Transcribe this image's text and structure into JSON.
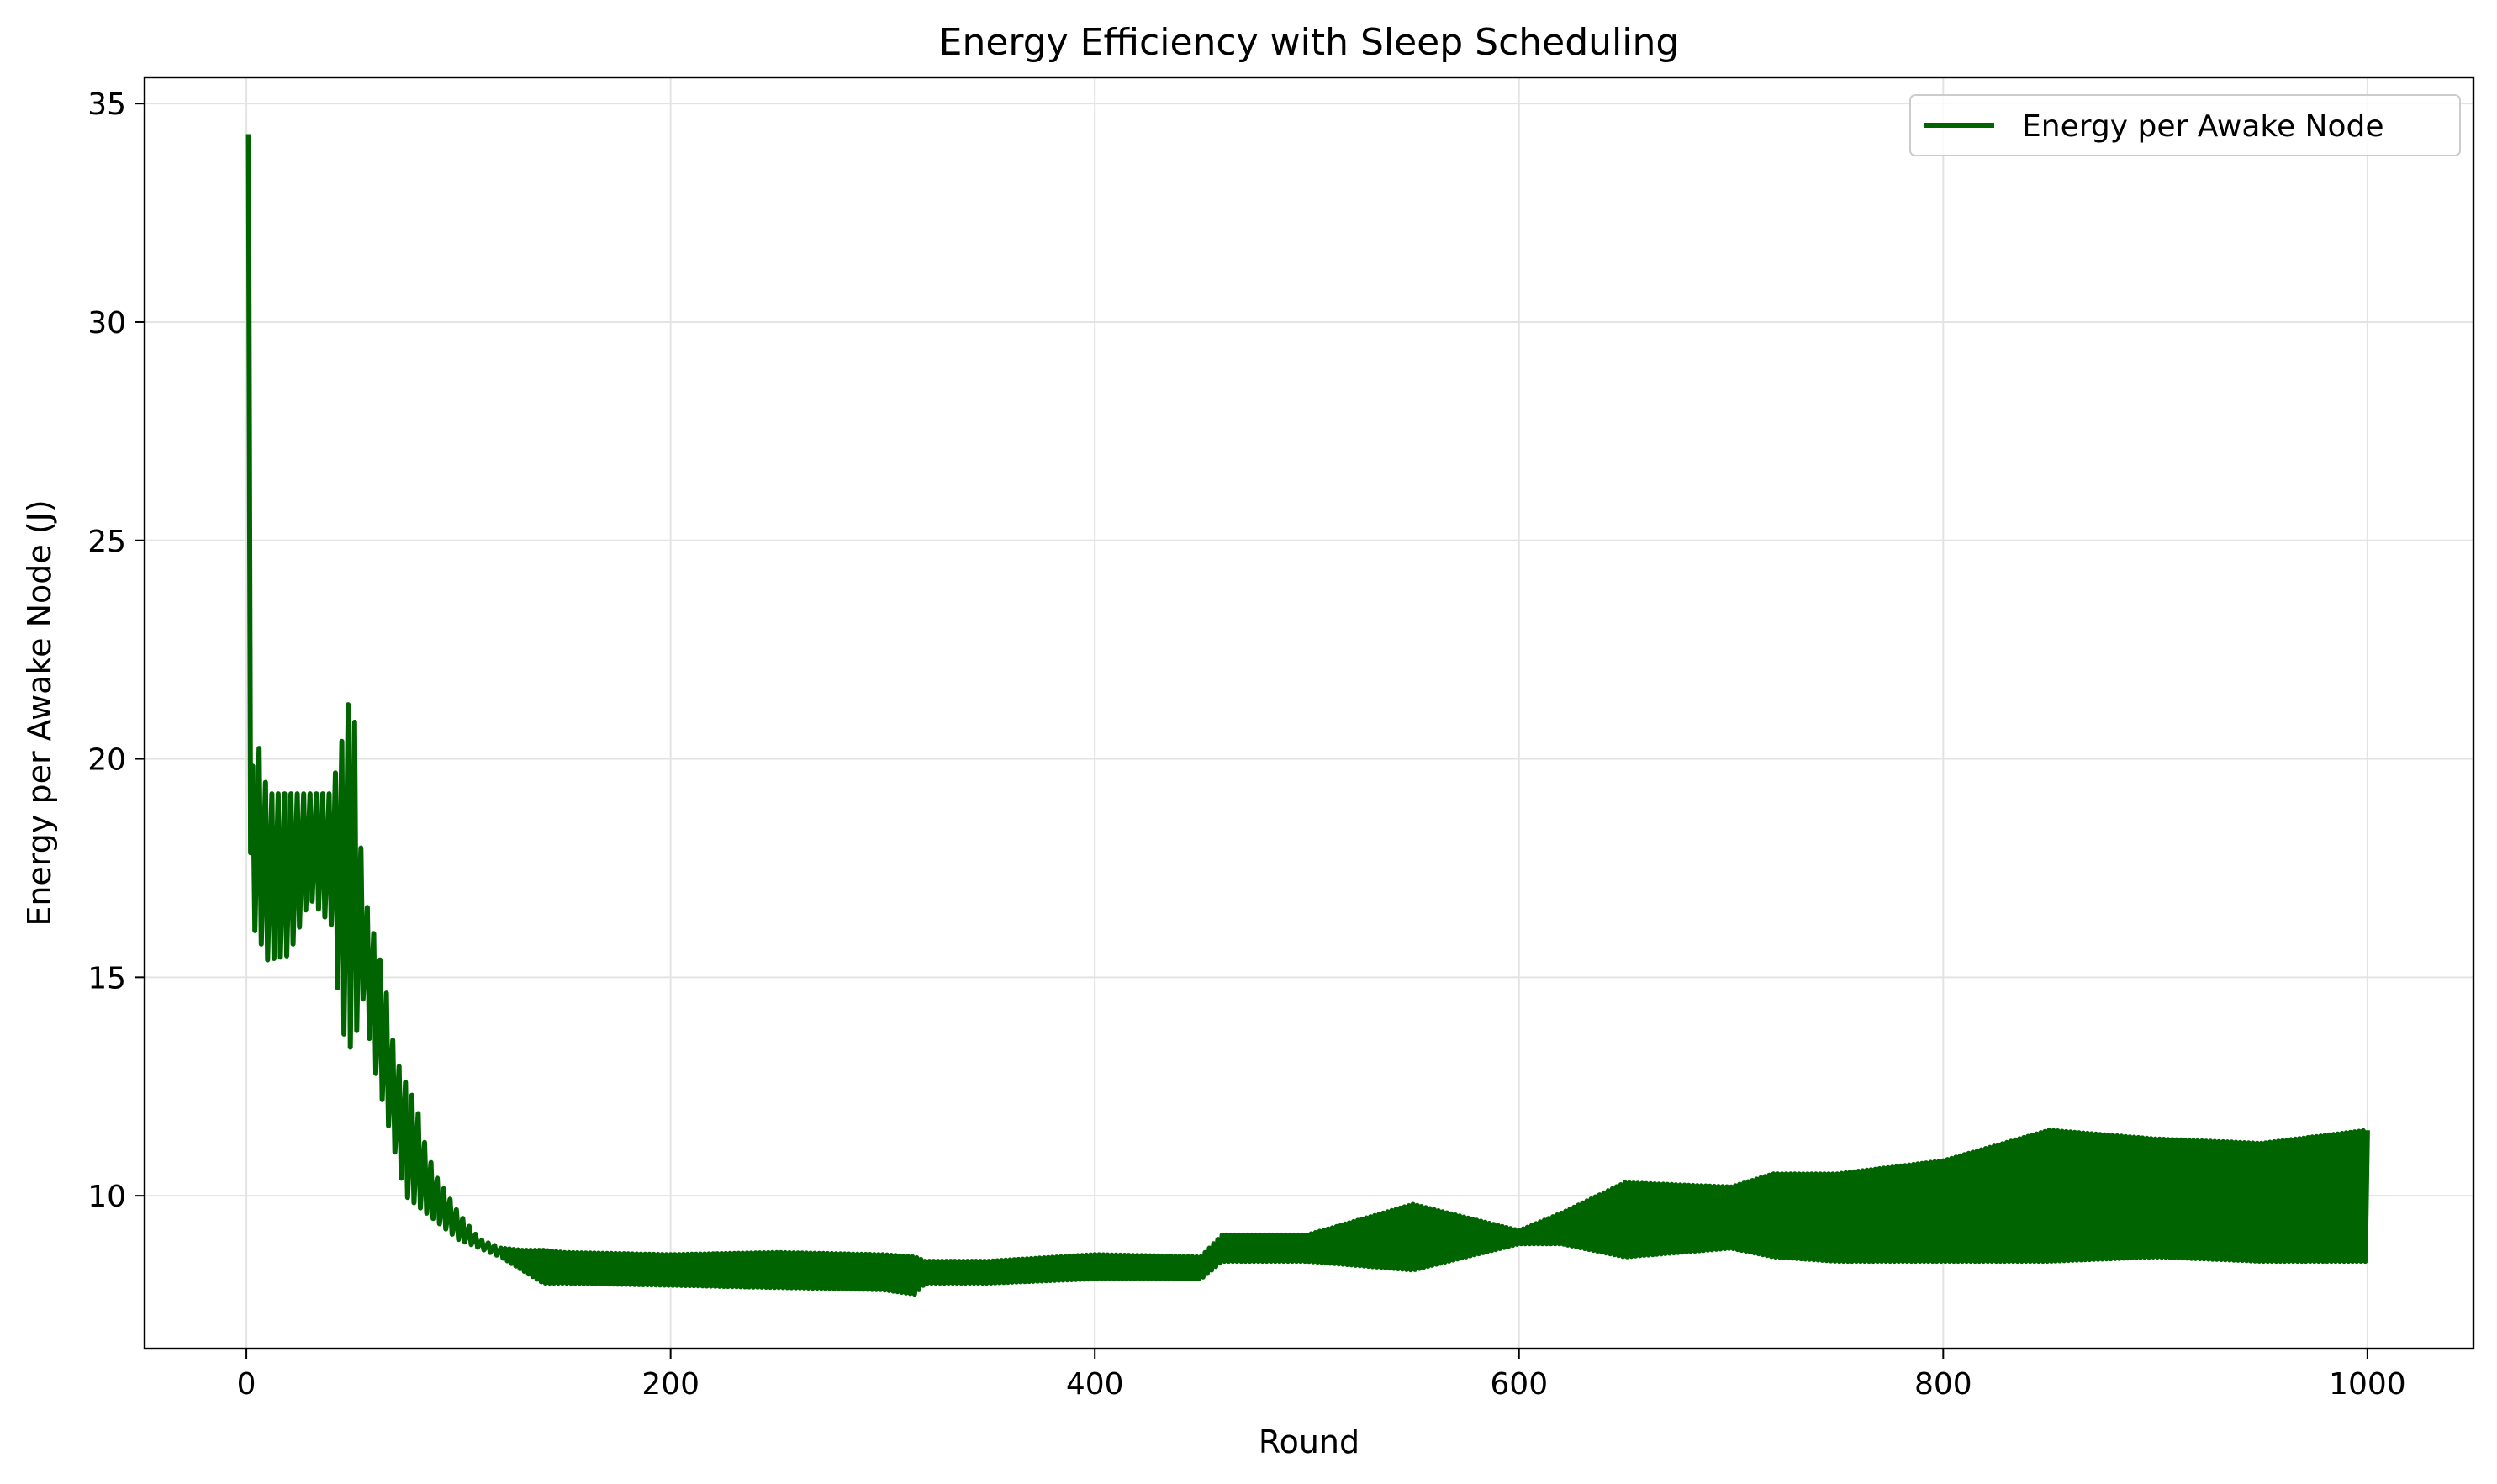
{
  "chart_data": {
    "type": "line",
    "title": "Energy Efficiency with Sleep Scheduling",
    "xlabel": "Round",
    "ylabel": "Energy per Awake Node (J)",
    "xlim": [
      -48,
      1050
    ],
    "ylim": [
      6.5,
      35.6
    ],
    "xticks": [
      0,
      200,
      400,
      600,
      800,
      1000
    ],
    "yticks": [
      10,
      15,
      20,
      25,
      30,
      35
    ],
    "grid": true,
    "legend_position": "upper-right",
    "colors": {
      "series": "#006400",
      "grid": "#e3e3e3",
      "axis": "#000000"
    },
    "series": [
      {
        "name": "Energy per Awake Node",
        "envelope": {
          "x": [
            1,
            2,
            5,
            10,
            20,
            30,
            40,
            45,
            50,
            55,
            60,
            65,
            70,
            75,
            80,
            85,
            90,
            95,
            100,
            105,
            110,
            120,
            130,
            140,
            150,
            200,
            250,
            300,
            315,
            320,
            350,
            400,
            450,
            460,
            500,
            550,
            600,
            620,
            650,
            700,
            720,
            750,
            800,
            850,
            900,
            950,
            1000
          ],
          "upper": [
            34.3,
            19.5,
            20.5,
            19.2,
            19.2,
            19.2,
            19.2,
            20.4,
            21.8,
            17.0,
            16.0,
            15.0,
            13.2,
            12.6,
            12.1,
            11.0,
            10.4,
            10.0,
            9.6,
            9.3,
            9.0,
            8.8,
            8.75,
            8.75,
            8.7,
            8.65,
            8.7,
            8.65,
            8.6,
            8.5,
            8.5,
            8.65,
            8.6,
            9.1,
            9.1,
            9.8,
            9.2,
            9.6,
            10.3,
            10.2,
            10.5,
            10.5,
            10.8,
            11.5,
            11.3,
            11.2,
            11.5
          ],
          "lower": [
            16.3,
            16.2,
            16.0,
            15.4,
            15.5,
            16.8,
            16.2,
            13.8,
            13.3,
            14.5,
            13.0,
            12.0,
            11.0,
            10.0,
            9.8,
            9.6,
            9.4,
            9.2,
            9.0,
            8.9,
            8.8,
            8.6,
            8.3,
            8.0,
            8.0,
            7.95,
            7.9,
            7.85,
            7.75,
            8.0,
            8.0,
            8.1,
            8.1,
            8.5,
            8.5,
            8.3,
            8.9,
            8.9,
            8.6,
            8.8,
            8.6,
            8.5,
            8.5,
            8.5,
            8.6,
            8.5,
            8.5
          ]
        }
      }
    ]
  }
}
